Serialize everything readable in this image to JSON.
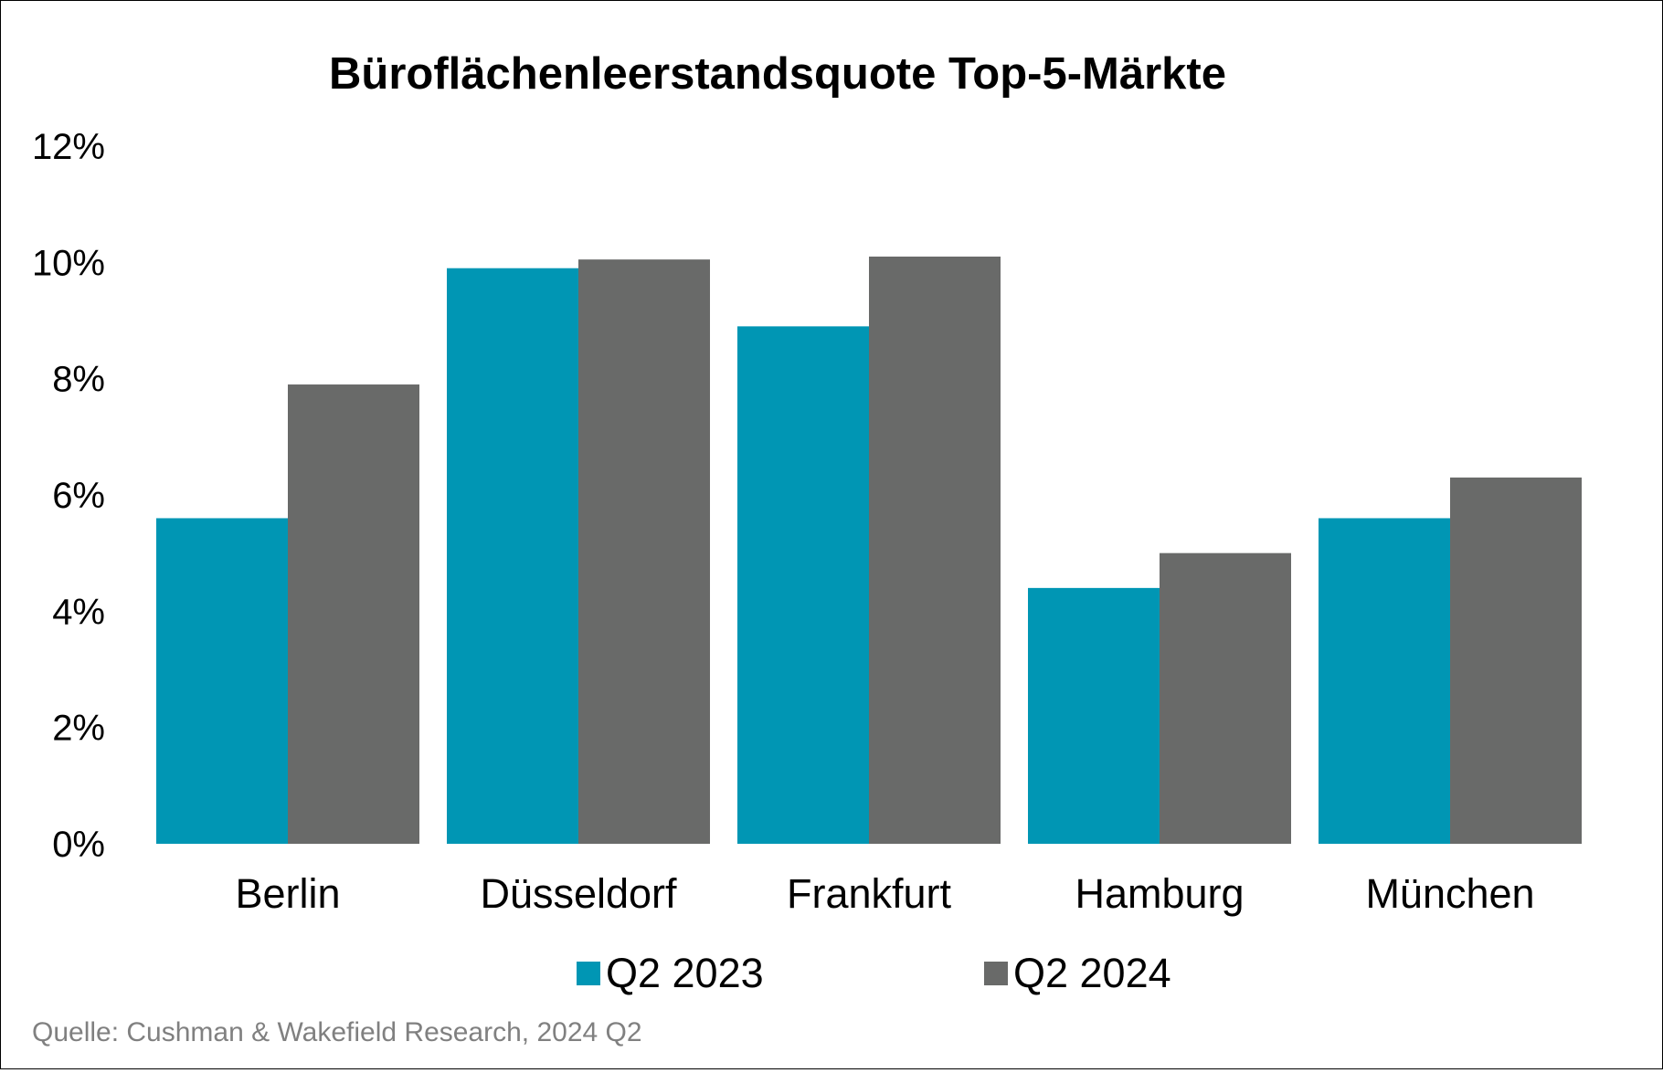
{
  "chart_data": {
    "type": "bar",
    "title": "Büroflächenleerstandsquote Top-5-Märkte",
    "xlabel": "",
    "ylabel": "",
    "categories": [
      "Berlin",
      "Düsseldorf",
      "Frankfurt",
      "Hamburg",
      "München"
    ],
    "series": [
      {
        "name": "Q2 2023",
        "color": "#0096B4",
        "values": [
          5.6,
          9.9,
          8.9,
          4.4,
          5.6
        ]
      },
      {
        "name": "Q2 2024",
        "color": "#696A69",
        "values": [
          7.9,
          10.05,
          10.1,
          5.0,
          6.3
        ]
      }
    ],
    "ylim": [
      0,
      12
    ],
    "yticks": [
      0,
      2,
      4,
      6,
      8,
      10,
      12
    ],
    "ytick_labels": [
      "0%",
      "2%",
      "4%",
      "6%",
      "8%",
      "10%",
      "12%"
    ],
    "grid": false,
    "legend_position": "bottom",
    "source": "Quelle: Cushman & Wakefield Research, 2024 Q2"
  }
}
